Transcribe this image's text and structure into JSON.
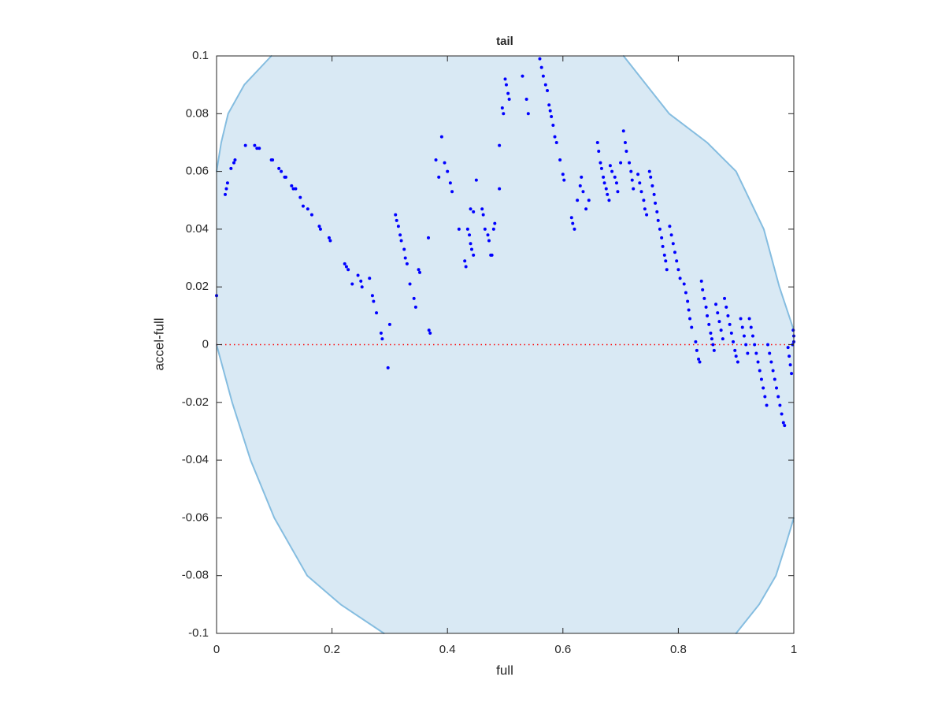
{
  "chart_data": {
    "type": "scatter",
    "title": "tail",
    "xlabel": "full",
    "ylabel": "accel-full",
    "xlim": [
      0,
      1
    ],
    "ylim": [
      -0.1,
      0.1
    ],
    "xticks": [
      0,
      0.2,
      0.4,
      0.6,
      0.8,
      1
    ],
    "yticks": [
      -0.1,
      -0.08,
      -0.06,
      -0.04,
      -0.02,
      0,
      0.02,
      0.04,
      0.06,
      0.08,
      0.1
    ],
    "color": "#0000ff",
    "reference_line": {
      "y": 0,
      "color": "#ff0000"
    },
    "region": {
      "fill": "#d9e9f4",
      "stroke": "#85bde0",
      "points": [
        [
          0,
          0.06
        ],
        [
          0.008,
          0.07
        ],
        [
          0.02,
          0.08
        ],
        [
          0.048,
          0.09
        ],
        [
          0.095,
          0.1
        ],
        [
          0.705,
          0.1
        ],
        [
          0.784,
          0.08
        ],
        [
          0.85,
          0.07
        ],
        [
          0.9,
          0.06
        ],
        [
          0.948,
          0.04
        ],
        [
          0.975,
          0.02
        ],
        [
          1,
          0.005
        ],
        [
          1,
          -0.06
        ],
        [
          0.985,
          -0.07
        ],
        [
          0.969,
          -0.08
        ],
        [
          0.94,
          -0.09
        ],
        [
          0.9,
          -0.1
        ],
        [
          0.29,
          -0.1
        ],
        [
          0.215,
          -0.09
        ],
        [
          0.157,
          -0.08
        ],
        [
          0.1,
          -0.06
        ],
        [
          0.059,
          -0.04
        ],
        [
          0.027,
          -0.02
        ],
        [
          0,
          0
        ]
      ]
    },
    "points": [
      [
        0,
        0.017
      ],
      [
        0.015,
        0.052
      ],
      [
        0.017,
        0.054
      ],
      [
        0.019,
        0.056
      ],
      [
        0.025,
        0.061
      ],
      [
        0.03,
        0.063
      ],
      [
        0.032,
        0.064
      ],
      [
        0.05,
        0.069
      ],
      [
        0.066,
        0.069
      ],
      [
        0.07,
        0.068
      ],
      [
        0.074,
        0.068
      ],
      [
        0.095,
        0.064
      ],
      [
        0.097,
        0.064
      ],
      [
        0.108,
        0.061
      ],
      [
        0.112,
        0.06
      ],
      [
        0.118,
        0.058
      ],
      [
        0.12,
        0.058
      ],
      [
        0.13,
        0.055
      ],
      [
        0.133,
        0.054
      ],
      [
        0.137,
        0.054
      ],
      [
        0.145,
        0.051
      ],
      [
        0.15,
        0.048
      ],
      [
        0.158,
        0.047
      ],
      [
        0.165,
        0.045
      ],
      [
        0.178,
        0.041
      ],
      [
        0.18,
        0.04
      ],
      [
        0.195,
        0.037
      ],
      [
        0.197,
        0.036
      ],
      [
        0.222,
        0.028
      ],
      [
        0.225,
        0.027
      ],
      [
        0.228,
        0.026
      ],
      [
        0.235,
        0.021
      ],
      [
        0.245,
        0.024
      ],
      [
        0.25,
        0.022
      ],
      [
        0.252,
        0.02
      ],
      [
        0.265,
        0.023
      ],
      [
        0.27,
        0.017
      ],
      [
        0.272,
        0.015
      ],
      [
        0.277,
        0.011
      ],
      [
        0.285,
        0.004
      ],
      [
        0.287,
        0.002
      ],
      [
        0.3,
        0.007
      ],
      [
        0.297,
        -0.008
      ],
      [
        0.31,
        0.045
      ],
      [
        0.312,
        0.043
      ],
      [
        0.315,
        0.041
      ],
      [
        0.318,
        0.038
      ],
      [
        0.32,
        0.036
      ],
      [
        0.325,
        0.033
      ],
      [
        0.327,
        0.03
      ],
      [
        0.33,
        0.028
      ],
      [
        0.335,
        0.021
      ],
      [
        0.342,
        0.016
      ],
      [
        0.345,
        0.013
      ],
      [
        0.35,
        0.026
      ],
      [
        0.352,
        0.025
      ],
      [
        0.367,
        0.037
      ],
      [
        0.368,
        0.005
      ],
      [
        0.37,
        0.004
      ],
      [
        0.38,
        0.064
      ],
      [
        0.385,
        0.058
      ],
      [
        0.39,
        0.072
      ],
      [
        0.395,
        0.063
      ],
      [
        0.4,
        0.06
      ],
      [
        0.405,
        0.056
      ],
      [
        0.408,
        0.053
      ],
      [
        0.42,
        0.04
      ],
      [
        0.43,
        0.029
      ],
      [
        0.432,
        0.027
      ],
      [
        0.435,
        0.04
      ],
      [
        0.438,
        0.038
      ],
      [
        0.44,
        0.035
      ],
      [
        0.442,
        0.033
      ],
      [
        0.445,
        0.031
      ],
      [
        0.44,
        0.047
      ],
      [
        0.445,
        0.046
      ],
      [
        0.45,
        0.057
      ],
      [
        0.46,
        0.047
      ],
      [
        0.462,
        0.045
      ],
      [
        0.465,
        0.04
      ],
      [
        0.47,
        0.038
      ],
      [
        0.472,
        0.036
      ],
      [
        0.475,
        0.031
      ],
      [
        0.477,
        0.031
      ],
      [
        0.48,
        0.04
      ],
      [
        0.482,
        0.042
      ],
      [
        0.49,
        0.054
      ],
      [
        0.49,
        0.069
      ],
      [
        0.495,
        0.082
      ],
      [
        0.497,
        0.08
      ],
      [
        0.5,
        0.092
      ],
      [
        0.502,
        0.09
      ],
      [
        0.505,
        0.087
      ],
      [
        0.507,
        0.085
      ],
      [
        0.53,
        0.093
      ],
      [
        0.537,
        0.085
      ],
      [
        0.54,
        0.08
      ],
      [
        0.56,
        0.099
      ],
      [
        0.563,
        0.096
      ],
      [
        0.566,
        0.093
      ],
      [
        0.57,
        0.09
      ],
      [
        0.573,
        0.088
      ],
      [
        0.576,
        0.083
      ],
      [
        0.578,
        0.081
      ],
      [
        0.58,
        0.079
      ],
      [
        0.583,
        0.076
      ],
      [
        0.586,
        0.072
      ],
      [
        0.589,
        0.07
      ],
      [
        0.595,
        0.064
      ],
      [
        0.6,
        0.059
      ],
      [
        0.602,
        0.057
      ],
      [
        0.615,
        0.044
      ],
      [
        0.617,
        0.042
      ],
      [
        0.62,
        0.04
      ],
      [
        0.625,
        0.05
      ],
      [
        0.63,
        0.055
      ],
      [
        0.632,
        0.058
      ],
      [
        0.635,
        0.053
      ],
      [
        0.64,
        0.047
      ],
      [
        0.645,
        0.05
      ],
      [
        0.66,
        0.07
      ],
      [
        0.662,
        0.067
      ],
      [
        0.665,
        0.063
      ],
      [
        0.667,
        0.061
      ],
      [
        0.67,
        0.058
      ],
      [
        0.672,
        0.056
      ],
      [
        0.675,
        0.054
      ],
      [
        0.677,
        0.052
      ],
      [
        0.68,
        0.05
      ],
      [
        0.682,
        0.062
      ],
      [
        0.685,
        0.06
      ],
      [
        0.69,
        0.058
      ],
      [
        0.693,
        0.056
      ],
      [
        0.695,
        0.053
      ],
      [
        0.7,
        0.063
      ],
      [
        0.705,
        0.074
      ],
      [
        0.708,
        0.07
      ],
      [
        0.71,
        0.067
      ],
      [
        0.715,
        0.063
      ],
      [
        0.718,
        0.06
      ],
      [
        0.72,
        0.057
      ],
      [
        0.722,
        0.054
      ],
      [
        0.73,
        0.059
      ],
      [
        0.733,
        0.056
      ],
      [
        0.736,
        0.053
      ],
      [
        0.74,
        0.05
      ],
      [
        0.742,
        0.047
      ],
      [
        0.745,
        0.045
      ],
      [
        0.75,
        0.06
      ],
      [
        0.752,
        0.058
      ],
      [
        0.755,
        0.055
      ],
      [
        0.758,
        0.052
      ],
      [
        0.76,
        0.049
      ],
      [
        0.763,
        0.046
      ],
      [
        0.765,
        0.043
      ],
      [
        0.768,
        0.04
      ],
      [
        0.771,
        0.037
      ],
      [
        0.773,
        0.034
      ],
      [
        0.776,
        0.031
      ],
      [
        0.778,
        0.029
      ],
      [
        0.78,
        0.026
      ],
      [
        0.785,
        0.041
      ],
      [
        0.788,
        0.038
      ],
      [
        0.791,
        0.035
      ],
      [
        0.794,
        0.032
      ],
      [
        0.797,
        0.029
      ],
      [
        0.8,
        0.026
      ],
      [
        0.803,
        0.023
      ],
      [
        0.81,
        0.021
      ],
      [
        0.813,
        0.018
      ],
      [
        0.816,
        0.015
      ],
      [
        0.818,
        0.012
      ],
      [
        0.82,
        0.009
      ],
      [
        0.823,
        0.006
      ],
      [
        0.83,
        0.001
      ],
      [
        0.832,
        -0.002
      ],
      [
        0.835,
        -0.005
      ],
      [
        0.837,
        -0.006
      ],
      [
        0.84,
        0.022
      ],
      [
        0.842,
        0.019
      ],
      [
        0.845,
        0.016
      ],
      [
        0.848,
        0.013
      ],
      [
        0.85,
        0.01
      ],
      [
        0.853,
        0.007
      ],
      [
        0.856,
        0.004
      ],
      [
        0.858,
        0.002
      ],
      [
        0.86,
        0
      ],
      [
        0.862,
        -0.002
      ],
      [
        0.865,
        0.014
      ],
      [
        0.868,
        0.011
      ],
      [
        0.871,
        0.008
      ],
      [
        0.874,
        0.005
      ],
      [
        0.877,
        0.002
      ],
      [
        0.88,
        0.016
      ],
      [
        0.883,
        0.013
      ],
      [
        0.886,
        0.01
      ],
      [
        0.889,
        0.007
      ],
      [
        0.892,
        0.004
      ],
      [
        0.895,
        0.001
      ],
      [
        0.898,
        -0.002
      ],
      [
        0.9,
        -0.004
      ],
      [
        0.903,
        -0.006
      ],
      [
        0.908,
        0.009
      ],
      [
        0.911,
        0.006
      ],
      [
        0.914,
        0.003
      ],
      [
        0.917,
        0
      ],
      [
        0.92,
        -0.003
      ],
      [
        0.923,
        0.009
      ],
      [
        0.926,
        0.006
      ],
      [
        0.929,
        0.003
      ],
      [
        0.932,
        0
      ],
      [
        0.935,
        -0.003
      ],
      [
        0.938,
        -0.006
      ],
      [
        0.941,
        -0.009
      ],
      [
        0.944,
        -0.012
      ],
      [
        0.947,
        -0.015
      ],
      [
        0.95,
        -0.018
      ],
      [
        0.953,
        -0.021
      ],
      [
        0.955,
        0
      ],
      [
        0.958,
        -0.003
      ],
      [
        0.961,
        -0.006
      ],
      [
        0.964,
        -0.009
      ],
      [
        0.967,
        -0.012
      ],
      [
        0.97,
        -0.015
      ],
      [
        0.973,
        -0.018
      ],
      [
        0.976,
        -0.021
      ],
      [
        0.979,
        -0.024
      ],
      [
        0.982,
        -0.027
      ],
      [
        0.984,
        -0.028
      ],
      [
        0.99,
        -0.001
      ],
      [
        0.992,
        -0.004
      ],
      [
        0.994,
        -0.007
      ],
      [
        0.996,
        -0.01
      ],
      [
        0.998,
        0
      ],
      [
        1,
        0.003
      ],
      [
        1,
        0.001
      ],
      [
        0.999,
        0.005
      ]
    ]
  }
}
